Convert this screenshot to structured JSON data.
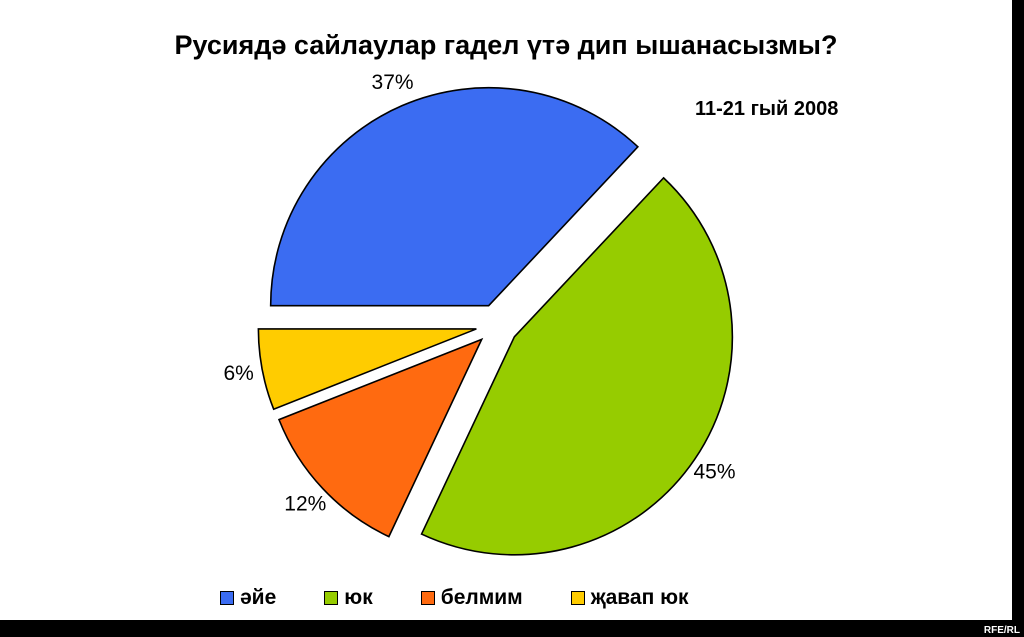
{
  "chart_data": {
    "type": "pie",
    "title": "Русиядә сайлаулар гадел үтә дип ышанасызмы?",
    "subtitle": "11-21 гый 2008",
    "categories": [
      "әйе",
      "юк",
      "белмим",
      "җавап юк"
    ],
    "values": [
      37,
      45,
      12,
      6
    ],
    "value_labels": [
      "37%",
      "45%",
      "12%",
      "6%"
    ],
    "colors": [
      "#3b6cf2",
      "#96cc00",
      "#ff6a10",
      "#ffcc00"
    ],
    "legend_position": "bottom",
    "exploded": true
  },
  "credit": "RFE/RL"
}
